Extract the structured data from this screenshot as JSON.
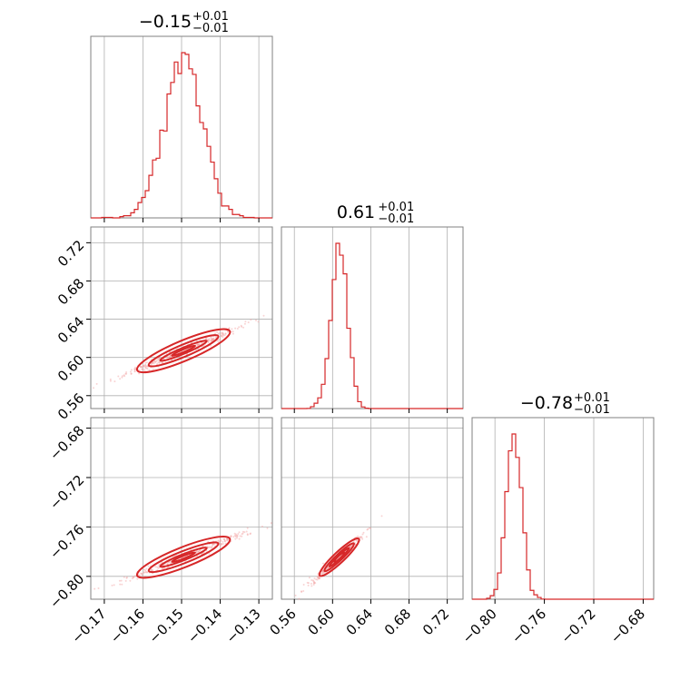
{
  "chart_data": {
    "type": "corner",
    "color": "#d62728",
    "parameters": [
      {
        "title_value": "−0.15",
        "title_plus": "+0.01",
        "title_minus": "−0.01",
        "range": [
          -0.1735,
          -0.1265
        ],
        "ticks": [
          -0.17,
          -0.16,
          -0.15,
          -0.14,
          -0.13
        ],
        "tick_labels": [
          "−0.17",
          "−0.16",
          "−0.15",
          "−0.14",
          "−0.13"
        ],
        "hist_center": -0.1495,
        "hist_sigma": 0.005
      },
      {
        "title_value": "0.61",
        "title_plus": "+0.01",
        "title_minus": "−0.01",
        "range": [
          0.5465,
          0.7365
        ],
        "ticks": [
          0.56,
          0.6,
          0.64,
          0.68,
          0.72
        ],
        "tick_labels": [
          "0.56",
          "0.60",
          "0.64",
          "0.68",
          "0.72"
        ],
        "hist_center": 0.607,
        "hist_sigma": 0.0085
      },
      {
        "title_value": "−0.78",
        "title_plus": "+0.01",
        "title_minus": "−0.01",
        "range": [
          -0.8185,
          -0.6715
        ],
        "ticks": [
          -0.8,
          -0.76,
          -0.72,
          -0.68
        ],
        "tick_labels": [
          "−0.80",
          "−0.76",
          "−0.72",
          "−0.68"
        ],
        "hist_center": -0.7845,
        "hist_sigma": 0.0062
      }
    ],
    "grid": true
  }
}
